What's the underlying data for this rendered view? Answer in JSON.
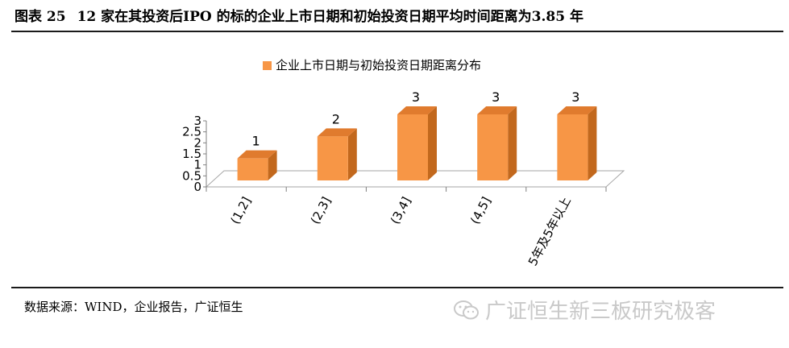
{
  "figure": {
    "label": "图表 25",
    "title": "12 家在其投资后IPO 的标的企业上市日期和初始投资日期平均时间距离为3.85 年"
  },
  "source": "数据来源：WIND，企业报告，广证恒生",
  "watermark": "广证恒生新三板研究极客",
  "chart_data": {
    "type": "bar",
    "categories": [
      "(1,2]",
      "(2,3]",
      "(3,4]",
      "(4,5]",
      "5年及5年以上"
    ],
    "series": [
      {
        "name": "企业上市日期与初始投资日期距离分布",
        "values": [
          1,
          2,
          3,
          3,
          3
        ]
      }
    ],
    "y_ticks": [
      "0",
      "0.5",
      "1",
      "1.5",
      "2",
      "2.5",
      "3"
    ],
    "ylim": [
      0,
      3
    ],
    "data_labels": [
      "1",
      "2",
      "3",
      "3",
      "3"
    ],
    "legend_position": "top",
    "grid": false,
    "bar_color": "#F79646",
    "bar_side_color": "#C2681D"
  }
}
